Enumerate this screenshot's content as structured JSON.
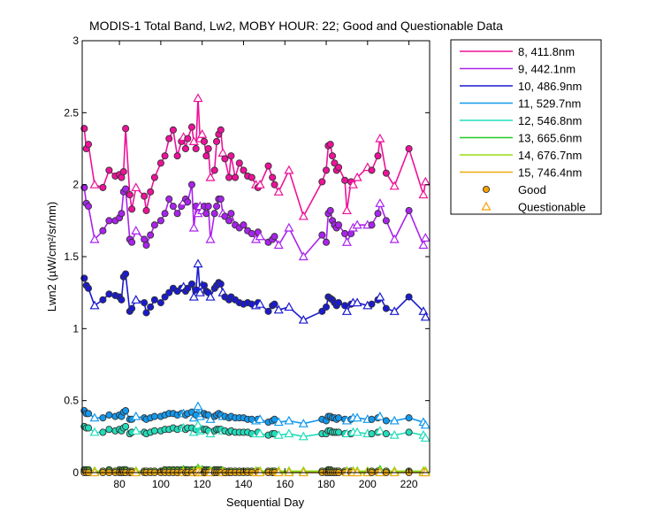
{
  "chart_data": {
    "type": "line",
    "title": "MODIS-1 Total Band, Lw2, MOBY HOUR: 22;  Good and Questionable Data",
    "xlabel": "Sequential Day",
    "ylabel": "Lwn2 (µW/cm²/sr/nm)",
    "xlim": [
      62,
      230
    ],
    "ylim": [
      0,
      3
    ],
    "xticks": [
      80,
      100,
      120,
      140,
      160,
      180,
      200,
      220
    ],
    "yticks": [
      0,
      0.5,
      1,
      1.5,
      2,
      2.5,
      3
    ],
    "ytick_labels": [
      "0",
      "0.5",
      "1",
      "1.5",
      "2",
      "2.5",
      "3"
    ],
    "grid": false,
    "legend_position": "outside-top-right",
    "markers": [
      {
        "name": "Good",
        "shape": "circle",
        "color": "#f5a000"
      },
      {
        "name": "Questionable",
        "shape": "triangle",
        "color": "#f5a000"
      }
    ],
    "x": [
      63,
      64,
      65,
      68,
      72,
      75,
      78,
      80,
      81,
      82,
      83,
      85,
      86,
      88,
      92,
      93,
      95,
      97,
      100,
      102,
      104,
      106,
      108,
      110,
      111,
      112,
      113,
      115,
      116,
      117,
      118,
      119,
      120,
      121,
      122,
      123,
      124,
      126,
      127,
      128,
      129,
      130,
      131,
      133,
      134,
      136,
      138,
      140,
      142,
      144,
      146,
      147,
      148,
      152,
      154,
      155,
      157,
      162,
      169,
      178,
      180,
      181,
      182,
      183,
      184,
      185,
      186,
      189,
      190,
      192,
      193,
      195,
      200,
      202,
      205,
      206,
      209,
      213,
      220,
      227,
      228
    ],
    "quality": [
      "G",
      "G",
      "G",
      "Q",
      "G",
      "G",
      "G",
      "G",
      "G",
      "G",
      "G",
      "G",
      "G",
      "Q",
      "G",
      "G",
      "G",
      "G",
      "G",
      "G",
      "G",
      "G",
      "G",
      "G",
      "Q",
      "G",
      "G",
      "G",
      "Q",
      "G",
      "Q",
      "Q",
      "Q",
      "G",
      "G",
      "G",
      "Q",
      "G",
      "G",
      "G",
      "G",
      "Q",
      "G",
      "G",
      "G",
      "G",
      "G",
      "G",
      "G",
      "G",
      "Q",
      "G",
      "Q",
      "G",
      "G",
      "G",
      "Q",
      "Q",
      "Q",
      "G",
      "G",
      "G",
      "G",
      "G",
      "G",
      "G",
      "G",
      "G",
      "Q",
      "G",
      "Q",
      "Q",
      "Q",
      "G",
      "G",
      "Q",
      "G",
      "Q",
      "G",
      "Q",
      "Q"
    ],
    "series": [
      {
        "name": "8, 411.8nm",
        "color": "#ee1199",
        "values": [
          2.39,
          2.25,
          2.28,
          2.0,
          1.98,
          2.1,
          2.06,
          2.07,
          2.05,
          2.09,
          2.39,
          1.93,
          1.83,
          1.98,
          1.92,
          1.82,
          1.95,
          2.05,
          2.15,
          2.2,
          2.32,
          2.38,
          2.2,
          2.3,
          2.33,
          2.25,
          2.32,
          2.4,
          2.3,
          2.25,
          2.6,
          2.32,
          2.35,
          2.3,
          2.2,
          2.25,
          2.05,
          2.1,
          2.3,
          2.35,
          2.38,
          2.22,
          2.18,
          2.05,
          2.2,
          2.05,
          2.15,
          2.1,
          2.06,
          2.05,
          2.0,
          1.98,
          2.0,
          2.13,
          2.05,
          2.0,
          1.95,
          2.1,
          1.78,
          2.02,
          2.1,
          2.27,
          2.28,
          2.2,
          2.15,
          2.1,
          2.12,
          2.03,
          1.82,
          2.02,
          2.0,
          2.05,
          2.12,
          2.1,
          2.2,
          2.32,
          2.08,
          1.99,
          2.25,
          1.93,
          2.02
        ]
      },
      {
        "name": "9, 442.1nm",
        "color": "#aa22ee",
        "values": [
          1.98,
          1.87,
          1.85,
          1.62,
          1.68,
          1.75,
          1.75,
          1.77,
          1.8,
          1.95,
          1.97,
          1.62,
          1.6,
          1.68,
          1.62,
          1.58,
          1.65,
          1.72,
          1.75,
          1.8,
          1.9,
          1.85,
          1.8,
          1.85,
          1.88,
          1.9,
          1.88,
          2.0,
          1.7,
          1.85,
          1.8,
          1.85,
          1.82,
          1.85,
          1.8,
          1.85,
          1.62,
          1.8,
          1.85,
          1.9,
          1.9,
          1.8,
          1.78,
          1.75,
          1.8,
          1.72,
          1.7,
          1.72,
          1.68,
          1.66,
          1.62,
          1.67,
          1.64,
          1.6,
          1.62,
          1.64,
          1.58,
          1.7,
          1.5,
          1.65,
          1.6,
          1.8,
          1.82,
          1.75,
          1.72,
          1.7,
          1.72,
          1.66,
          1.6,
          1.66,
          1.7,
          1.72,
          1.72,
          1.72,
          1.8,
          1.87,
          1.75,
          1.62,
          1.82,
          1.58,
          1.63
        ]
      },
      {
        "name": "10, 486.9nm",
        "color": "#1a1ad0",
        "values": [
          1.35,
          1.3,
          1.28,
          1.16,
          1.2,
          1.24,
          1.23,
          1.22,
          1.2,
          1.36,
          1.38,
          1.12,
          1.14,
          1.2,
          1.18,
          1.11,
          1.15,
          1.2,
          1.18,
          1.22,
          1.25,
          1.28,
          1.26,
          1.28,
          1.29,
          1.26,
          1.28,
          1.31,
          1.22,
          1.27,
          1.45,
          1.25,
          1.3,
          1.3,
          1.26,
          1.25,
          1.22,
          1.28,
          1.3,
          1.32,
          1.31,
          1.25,
          1.22,
          1.2,
          1.22,
          1.2,
          1.18,
          1.17,
          1.18,
          1.17,
          1.16,
          1.18,
          1.17,
          1.12,
          1.16,
          1.17,
          1.13,
          1.15,
          1.06,
          1.12,
          1.15,
          1.22,
          1.21,
          1.2,
          1.18,
          1.16,
          1.18,
          1.16,
          1.12,
          1.17,
          1.18,
          1.18,
          1.16,
          1.17,
          1.2,
          1.22,
          1.14,
          1.12,
          1.22,
          1.12,
          1.08
        ]
      },
      {
        "name": "11, 529.7nm",
        "color": "#1199ee",
        "values": [
          0.43,
          0.41,
          0.41,
          0.38,
          0.38,
          0.4,
          0.39,
          0.4,
          0.39,
          0.42,
          0.43,
          0.37,
          0.37,
          0.39,
          0.38,
          0.37,
          0.38,
          0.39,
          0.39,
          0.4,
          0.41,
          0.41,
          0.4,
          0.41,
          0.41,
          0.4,
          0.41,
          0.42,
          0.38,
          0.4,
          0.46,
          0.39,
          0.41,
          0.41,
          0.4,
          0.4,
          0.37,
          0.39,
          0.4,
          0.41,
          0.4,
          0.39,
          0.39,
          0.38,
          0.39,
          0.38,
          0.38,
          0.38,
          0.37,
          0.37,
          0.36,
          0.37,
          0.37,
          0.35,
          0.36,
          0.37,
          0.35,
          0.36,
          0.34,
          0.37,
          0.36,
          0.39,
          0.39,
          0.38,
          0.38,
          0.37,
          0.38,
          0.37,
          0.36,
          0.37,
          0.38,
          0.38,
          0.37,
          0.37,
          0.38,
          0.39,
          0.36,
          0.36,
          0.38,
          0.35,
          0.33
        ]
      },
      {
        "name": "12, 546.8nm",
        "color": "#22ddbb",
        "values": [
          0.32,
          0.31,
          0.31,
          0.28,
          0.28,
          0.3,
          0.29,
          0.3,
          0.29,
          0.31,
          0.32,
          0.27,
          0.28,
          0.29,
          0.28,
          0.27,
          0.28,
          0.29,
          0.29,
          0.3,
          0.3,
          0.31,
          0.3,
          0.31,
          0.31,
          0.3,
          0.31,
          0.31,
          0.28,
          0.3,
          0.33,
          0.29,
          0.3,
          0.3,
          0.3,
          0.29,
          0.27,
          0.29,
          0.3,
          0.3,
          0.3,
          0.29,
          0.29,
          0.28,
          0.29,
          0.28,
          0.28,
          0.28,
          0.28,
          0.27,
          0.27,
          0.28,
          0.27,
          0.26,
          0.27,
          0.27,
          0.26,
          0.27,
          0.25,
          0.27,
          0.27,
          0.29,
          0.29,
          0.28,
          0.28,
          0.28,
          0.28,
          0.27,
          0.27,
          0.27,
          0.28,
          0.28,
          0.27,
          0.27,
          0.28,
          0.29,
          0.27,
          0.26,
          0.28,
          0.26,
          0.24
        ]
      },
      {
        "name": "13, 665.6nm",
        "color": "#22cc22",
        "values": [
          0.02,
          0.02,
          0.02,
          0.01,
          0.01,
          0.02,
          0.01,
          0.02,
          0.01,
          0.02,
          0.02,
          0.01,
          0.01,
          0.01,
          0.01,
          0.01,
          0.01,
          0.01,
          0.01,
          0.02,
          0.02,
          0.02,
          0.02,
          0.02,
          0.02,
          0.02,
          0.02,
          0.02,
          0.01,
          0.02,
          0.03,
          0.01,
          0.02,
          0.02,
          0.02,
          0.02,
          0.01,
          0.02,
          0.02,
          0.02,
          0.02,
          0.01,
          0.01,
          0.01,
          0.01,
          0.01,
          0.01,
          0.01,
          0.01,
          0.01,
          0.01,
          0.01,
          0.01,
          0.01,
          0.01,
          0.01,
          0.01,
          0.01,
          0.01,
          0.01,
          0.01,
          0.02,
          0.02,
          0.01,
          0.01,
          0.01,
          0.01,
          0.01,
          0.01,
          0.01,
          0.01,
          0.01,
          0.01,
          0.01,
          0.01,
          0.02,
          0.01,
          0.01,
          0.01,
          0.01,
          0.01
        ]
      },
      {
        "name": "14, 676.7nm",
        "color": "#99dd11",
        "values": [
          0.01,
          0.01,
          0.01,
          0.01,
          0.01,
          0.01,
          0.01,
          0.01,
          0.01,
          0.01,
          0.01,
          0.01,
          0.01,
          0.01,
          0.01,
          0.01,
          0.01,
          0.01,
          0.01,
          0.01,
          0.01,
          0.01,
          0.01,
          0.01,
          0.01,
          0.01,
          0.01,
          0.01,
          0.01,
          0.01,
          0.02,
          0.01,
          0.01,
          0.01,
          0.01,
          0.01,
          0.01,
          0.01,
          0.01,
          0.01,
          0.01,
          0.01,
          0.01,
          0.01,
          0.01,
          0.01,
          0.01,
          0.01,
          0.01,
          0.01,
          0.01,
          0.01,
          0.01,
          0.01,
          0.01,
          0.01,
          0.01,
          0.01,
          0.01,
          0.01,
          0.01,
          0.01,
          0.01,
          0.01,
          0.01,
          0.01,
          0.01,
          0.01,
          0.01,
          0.01,
          0.01,
          0.01,
          0.01,
          0.01,
          0.01,
          0.01,
          0.01,
          0.01,
          0.01,
          0.01,
          0.01
        ]
      },
      {
        "name": "15, 746.4nm",
        "color": "#eeaa11",
        "values": [
          0.0,
          0.0,
          0.0,
          0.0,
          0.0,
          0.0,
          0.0,
          0.0,
          0.0,
          0.0,
          0.0,
          0.0,
          0.0,
          0.0,
          0.0,
          0.0,
          0.0,
          0.0,
          0.0,
          0.0,
          0.0,
          0.0,
          0.0,
          0.0,
          0.0,
          0.0,
          0.0,
          0.0,
          0.0,
          0.0,
          0.01,
          0.0,
          0.0,
          0.0,
          0.0,
          0.0,
          0.0,
          0.0,
          0.0,
          0.0,
          0.0,
          0.0,
          0.0,
          0.0,
          0.0,
          0.0,
          0.0,
          0.0,
          0.0,
          0.0,
          0.0,
          0.0,
          0.0,
          0.0,
          0.0,
          0.0,
          0.0,
          0.0,
          0.0,
          0.0,
          0.0,
          0.0,
          0.0,
          0.0,
          0.0,
          0.0,
          0.0,
          0.0,
          0.0,
          0.0,
          0.0,
          0.0,
          0.0,
          0.0,
          0.0,
          0.0,
          0.0,
          0.0,
          0.0,
          0.0,
          0.0
        ]
      }
    ]
  }
}
